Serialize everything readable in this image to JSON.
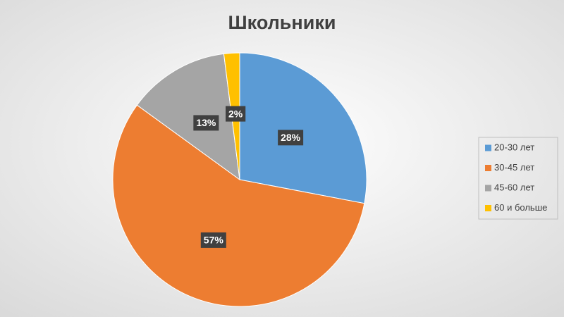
{
  "chart_data": {
    "type": "pie",
    "title": "Школьники",
    "categories": [
      "20-30 лет",
      "30-45 лет",
      "45-60 лет",
      "60 и больше"
    ],
    "values": [
      28,
      57,
      13,
      2
    ],
    "value_labels": [
      "28%",
      "57%",
      "13%",
      "2%"
    ],
    "colors": [
      "#5b9bd5",
      "#ed7d31",
      "#a5a5a5",
      "#ffc000"
    ],
    "legend": "right"
  }
}
